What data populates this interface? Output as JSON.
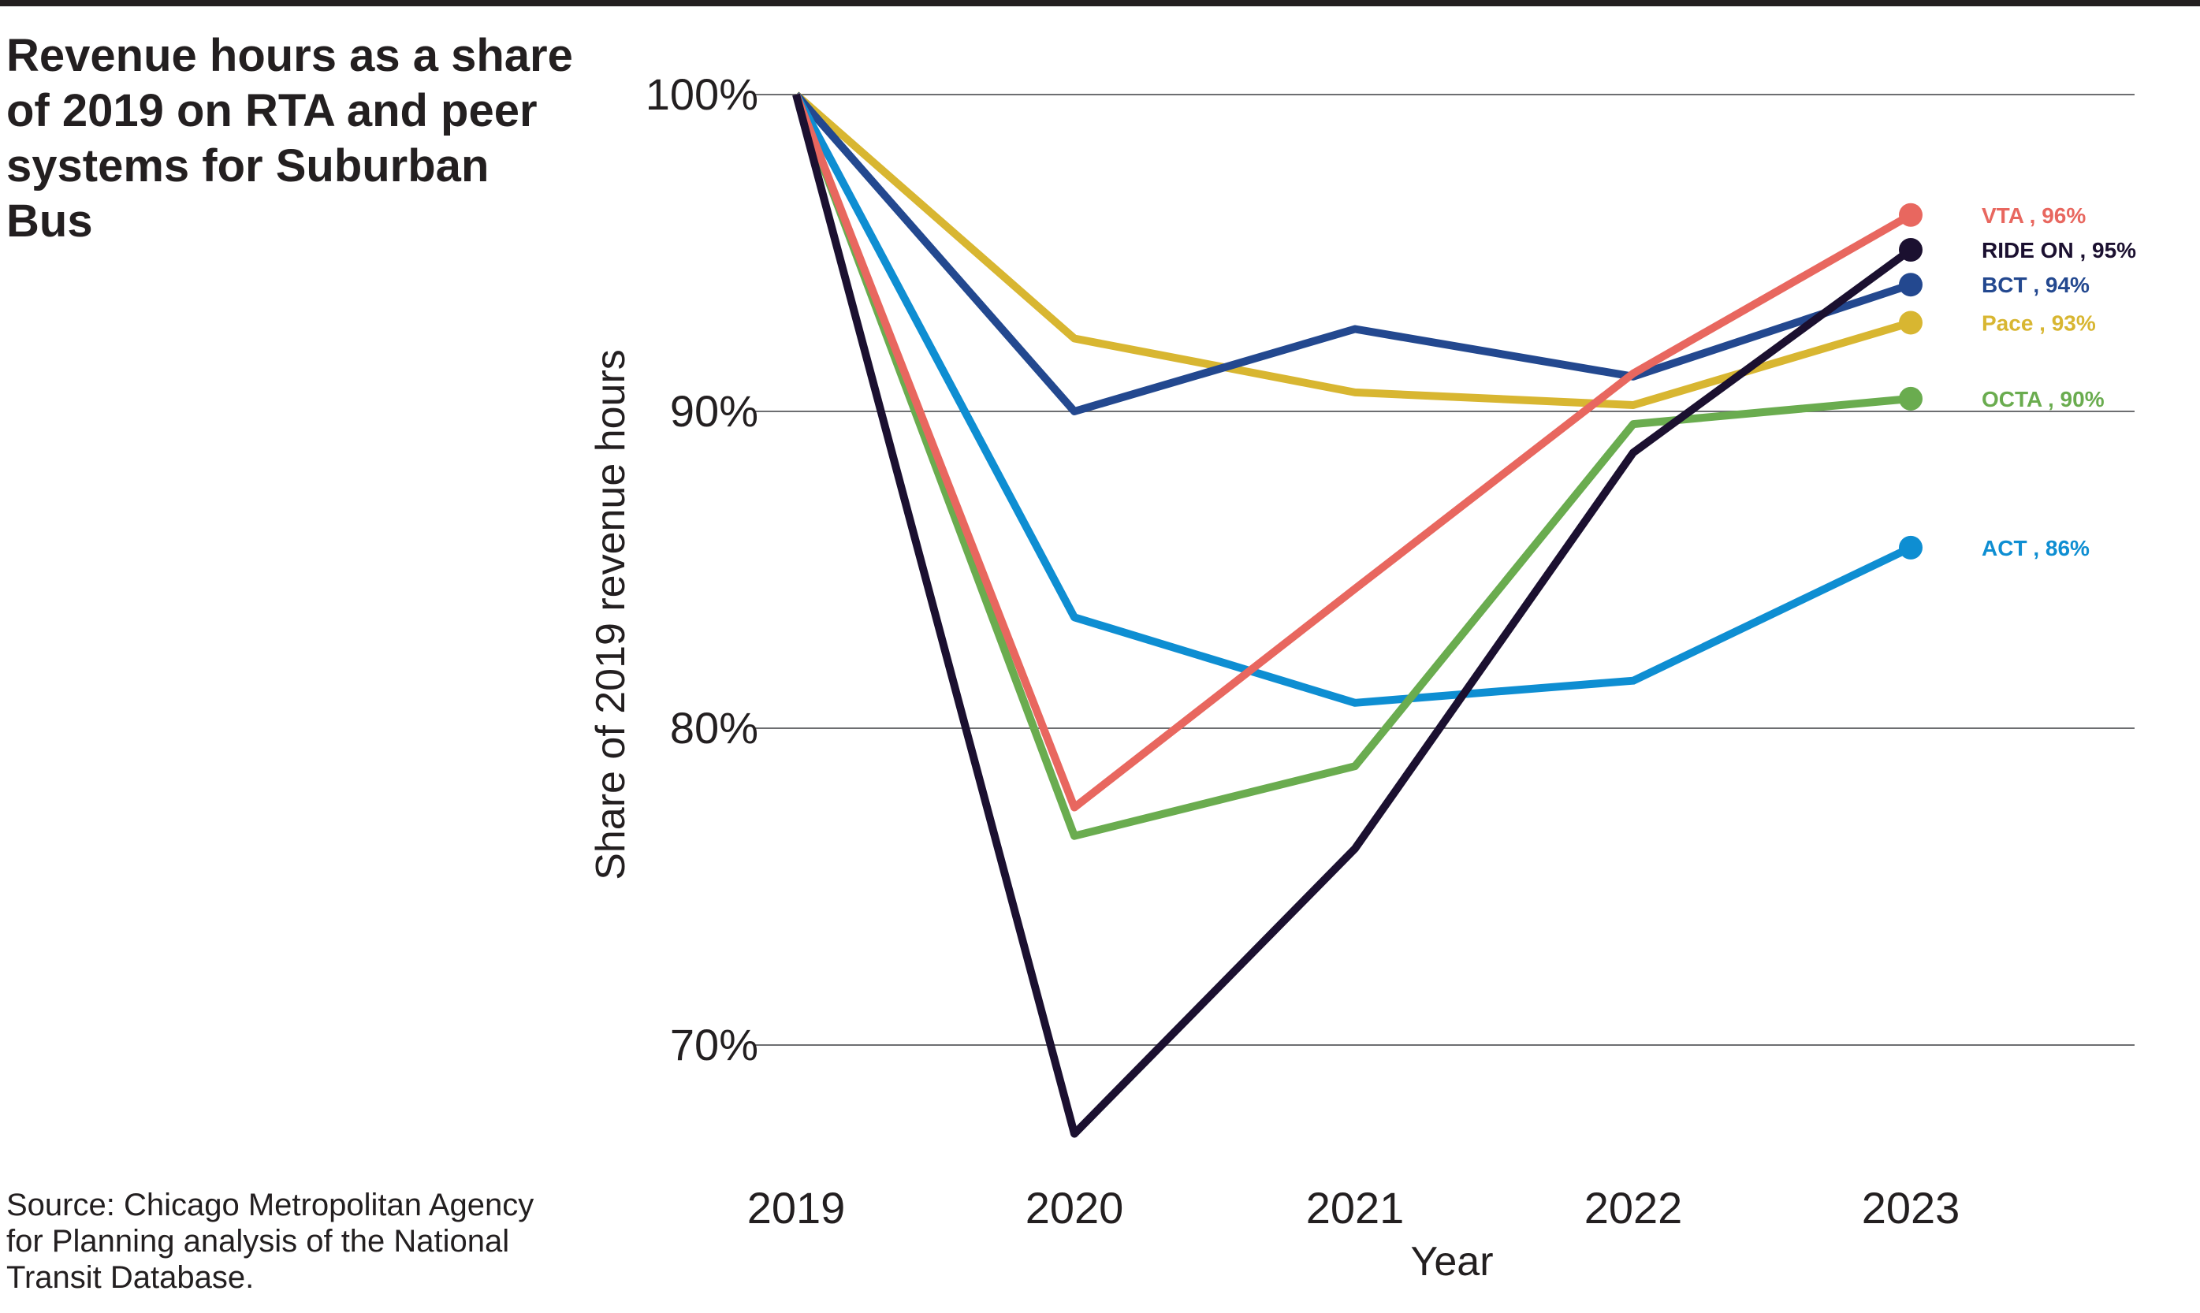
{
  "page": {
    "title": "Revenue hours as a share of 2019 on RTA and peer systems for Suburban Bus",
    "source": "Source: Chicago Metropolitan Agency for Planning analysis of the National Transit Database."
  },
  "chart_data": {
    "type": "line",
    "title": "Revenue hours as a share of 2019 on RTA and peer systems for Suburban Bus",
    "xlabel": "Year",
    "ylabel": "Share of 2019 revenue hours",
    "x": [
      "2019",
      "2020",
      "2021",
      "2022",
      "2023"
    ],
    "ylim": [
      67,
      100
    ],
    "yticks": [
      {
        "value": 100,
        "label": "100%"
      },
      {
        "value": 90,
        "label": "90%"
      },
      {
        "value": 80,
        "label": "80%"
      },
      {
        "value": 70,
        "label": "70%"
      }
    ],
    "grid": "horizontal",
    "legend": "direct labels at right end of lines",
    "series": [
      {
        "name": "VTA",
        "end_label": "VTA , 96%",
        "color": "#e8675f",
        "values": [
          100,
          77.5,
          84.4,
          91.2,
          96.2
        ]
      },
      {
        "name": "RIDE ON",
        "end_label": "RIDE ON , 95%",
        "color": "#1b1030",
        "values": [
          100,
          67.2,
          76.2,
          88.7,
          95.1
        ]
      },
      {
        "name": "BCT",
        "end_label": "BCT , 94%",
        "color": "#23488f",
        "values": [
          100,
          90.0,
          92.6,
          91.1,
          94.0
        ]
      },
      {
        "name": "Pace",
        "end_label": "Pace , 93%",
        "color": "#d8b631",
        "values": [
          100,
          92.3,
          90.6,
          90.2,
          92.8
        ]
      },
      {
        "name": "OCTA",
        "end_label": "OCTA , 90%",
        "color": "#6aac4f",
        "values": [
          100,
          76.6,
          78.8,
          89.6,
          90.4
        ]
      },
      {
        "name": "ACT",
        "end_label": "ACT , 86%",
        "color": "#0e8ed2",
        "values": [
          100,
          83.5,
          80.8,
          81.5,
          85.7
        ]
      }
    ]
  }
}
